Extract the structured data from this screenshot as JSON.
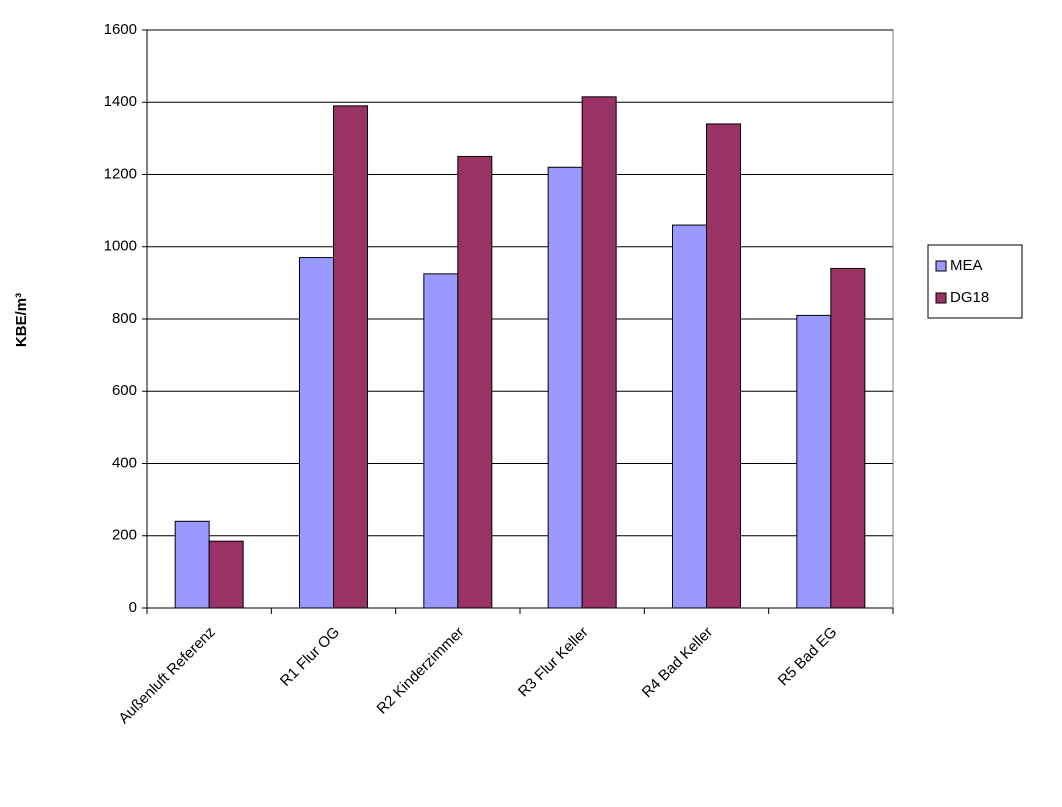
{
  "chart_data": {
    "type": "bar",
    "y_label": "KBE/m³",
    "categories": [
      "Außenluft Referenz",
      "R1 Flur OG",
      "R2 Kinderzimmer",
      "R3 Flur Keller",
      "R4 Bad Keller",
      "R5 Bad EG"
    ],
    "series": [
      {
        "name": "MEA",
        "color": "#9999ff",
        "values": [
          240,
          970,
          925,
          1220,
          1060,
          810
        ]
      },
      {
        "name": "DG18",
        "color": "#993366",
        "values": [
          185,
          1390,
          1250,
          1415,
          1340,
          940
        ]
      }
    ],
    "ylim": [
      0,
      1600
    ],
    "yticks": [
      0,
      200,
      400,
      600,
      800,
      1000,
      1200,
      1400,
      1600
    ],
    "grid": true,
    "legend": "right"
  }
}
